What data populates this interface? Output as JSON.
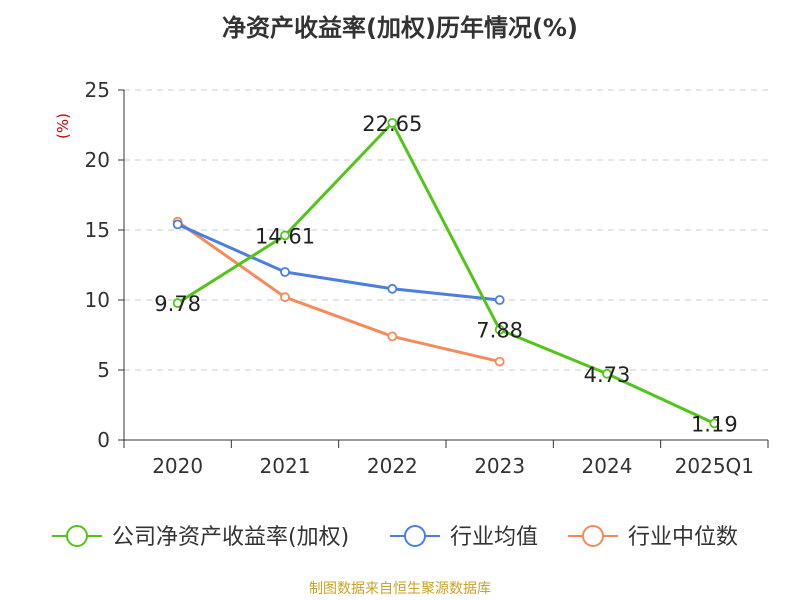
{
  "title": "净资产收益率(加权)历年情况(%)",
  "source": "制图数据来自恒生聚源数据库",
  "colors": {
    "company": "#52c41a",
    "industry_avg": "#4a7fe0",
    "industry_median": "#f48b5a",
    "axis_unit": "#cc0000",
    "title": "#333333",
    "source": "#c9a227"
  },
  "chart_data": {
    "type": "line",
    "title": "净资产收益率(加权)历年情况(%)",
    "ylabel": "(%)",
    "xlabel": "",
    "categories": [
      "2020",
      "2021",
      "2022",
      "2023",
      "2024",
      "2025Q1"
    ],
    "ylim": [
      0,
      25
    ],
    "yticks": [
      0,
      5,
      10,
      15,
      20,
      25
    ],
    "grid": "horizontal-dashed",
    "legend_position": "bottom",
    "series": [
      {
        "name": "公司净资产收益率(加权)",
        "color_key": "company",
        "values": [
          9.78,
          14.61,
          22.65,
          7.88,
          4.73,
          1.19
        ],
        "labels": [
          "9.78",
          "14.61",
          "22.65",
          "7.88",
          "4.73",
          "1.19"
        ]
      },
      {
        "name": "行业均值",
        "color_key": "industry_avg",
        "values": [
          15.4,
          12.0,
          10.8,
          10.0,
          null,
          null
        ]
      },
      {
        "name": "行业中位数",
        "color_key": "industry_median",
        "values": [
          15.6,
          10.2,
          7.4,
          5.6,
          null,
          null
        ]
      }
    ]
  }
}
